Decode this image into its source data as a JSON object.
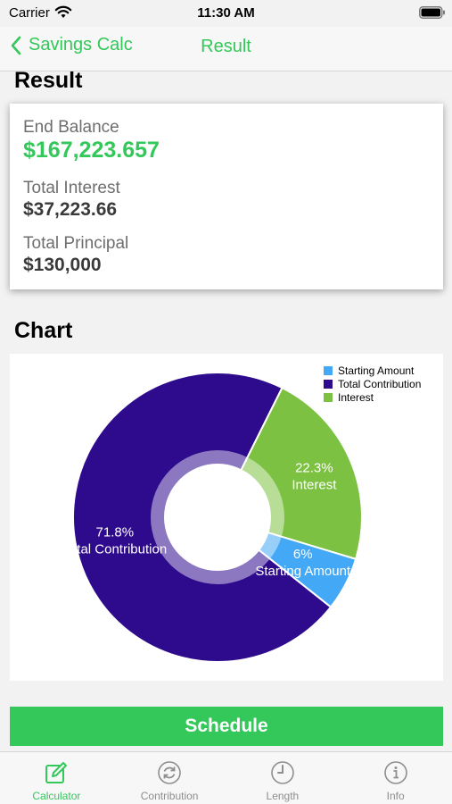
{
  "status": {
    "carrier": "Carrier",
    "time": "11:30 AM"
  },
  "nav": {
    "back_label": "Savings Calc",
    "title": "Result"
  },
  "result": {
    "heading": "Result",
    "end_balance_label": "End Balance",
    "end_balance_value": "$167,223.657",
    "total_interest_label": "Total Interest",
    "total_interest_value": "$37,223.66",
    "total_principal_label": "Total Principal",
    "total_principal_value": "$130,000"
  },
  "chart_heading": "Chart",
  "chart_data": {
    "type": "pie",
    "hole": true,
    "legend_position": "top-right",
    "slices": [
      {
        "label": "Starting Amount",
        "value": 6,
        "display": "6%",
        "color": "#43a8f5"
      },
      {
        "label": "Total Contribution",
        "value": 71.8,
        "display": "71.8%",
        "color": "#2e0a8c"
      },
      {
        "label": "Interest",
        "value": 22.3,
        "display": "22.3%",
        "color": "#7cc142"
      }
    ]
  },
  "schedule_label": "Schedule",
  "tabs": [
    {
      "label": "Calculator",
      "icon": "edit-icon",
      "active": true
    },
    {
      "label": "Contribution",
      "icon": "refresh-icon",
      "active": false
    },
    {
      "label": "Length",
      "icon": "clock-icon",
      "active": false
    },
    {
      "label": "Info",
      "icon": "info-icon",
      "active": false
    }
  ],
  "colors": {
    "accent": "#34c759",
    "tab_inactive": "#8e8e8e"
  }
}
